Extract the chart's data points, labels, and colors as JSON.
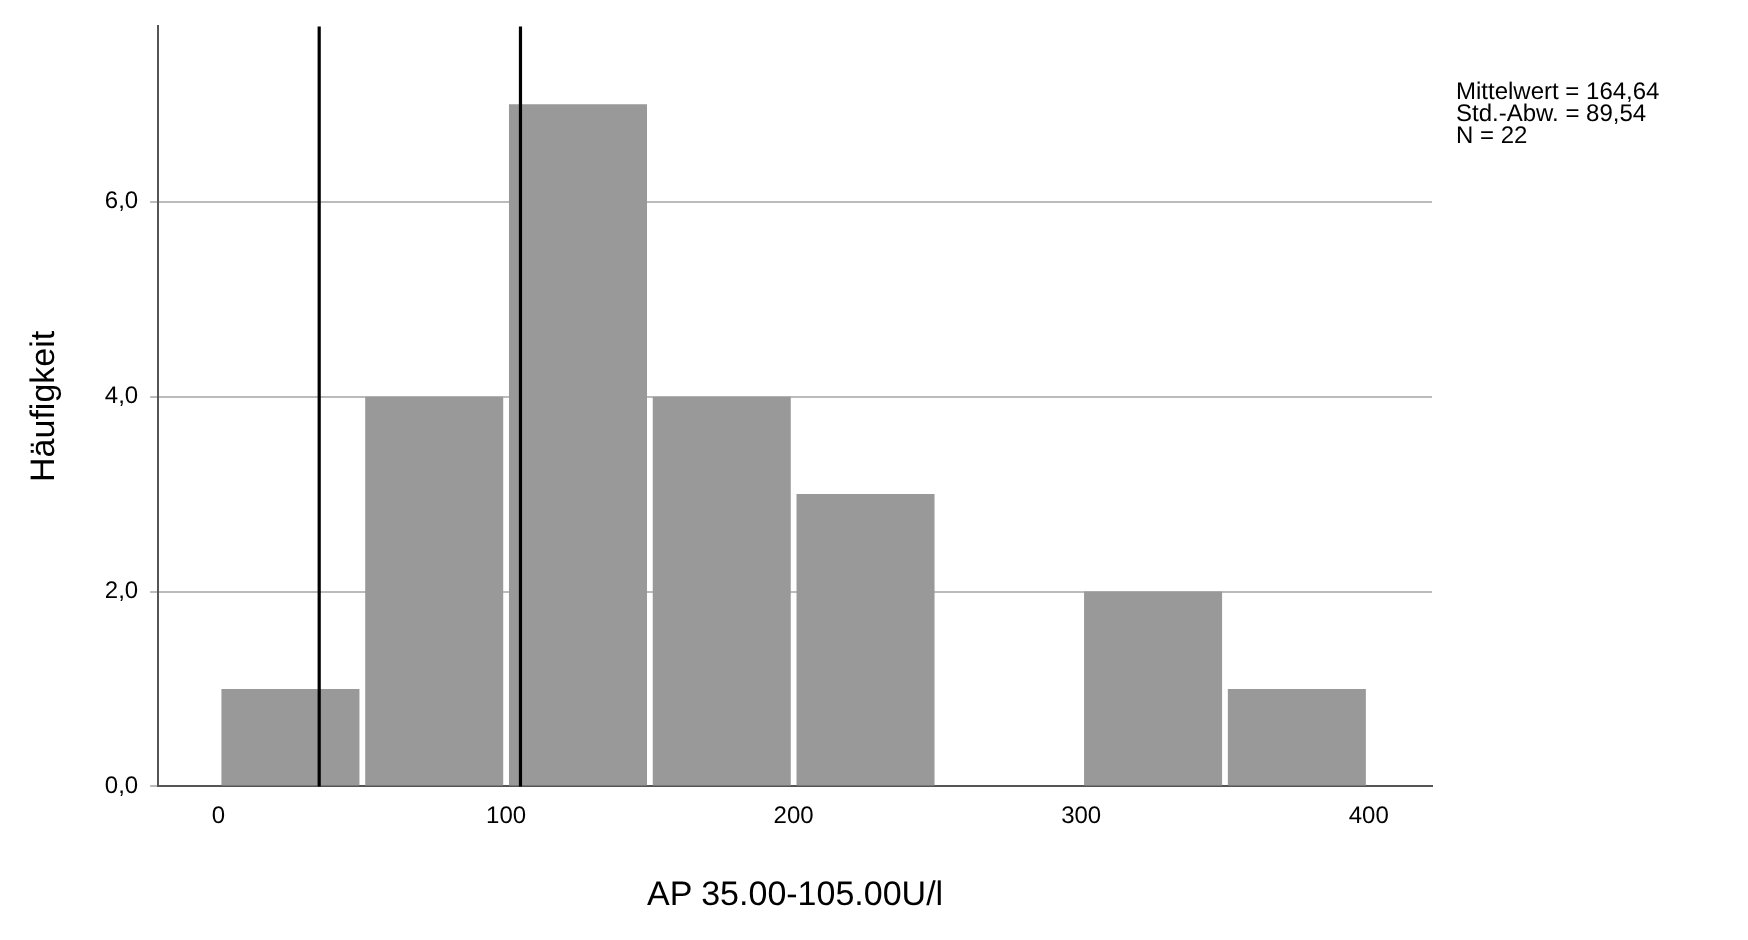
{
  "chart_data": {
    "type": "histogram",
    "xlabel": "AP 35.00-105.00U/l",
    "ylabel": "Häufigkeit",
    "bins": [
      0,
      50,
      100,
      150,
      200,
      250,
      300,
      350,
      400
    ],
    "values": [
      1,
      4,
      7,
      4,
      3,
      0,
      2,
      1
    ],
    "color": "#999999",
    "xlim": [
      -21,
      422
    ],
    "xticks": [
      0,
      100,
      200,
      300,
      400
    ],
    "ylim": [
      0,
      7.8
    ],
    "yticks": [
      {
        "value": 0,
        "label": "0,0"
      },
      {
        "value": 2,
        "label": "2,0"
      },
      {
        "value": 4,
        "label": "4,0"
      },
      {
        "value": 6,
        "label": "6,0"
      }
    ],
    "grid": "y",
    "ref_lines": [
      {
        "axis": "x",
        "value": 35,
        "color": "#000000"
      },
      {
        "axis": "x",
        "value": 105,
        "color": "#000000"
      }
    ],
    "annotations": [
      "Mittelwert = 164,64",
      "Std.-Abw. = 89,54",
      "N = 22"
    ]
  }
}
